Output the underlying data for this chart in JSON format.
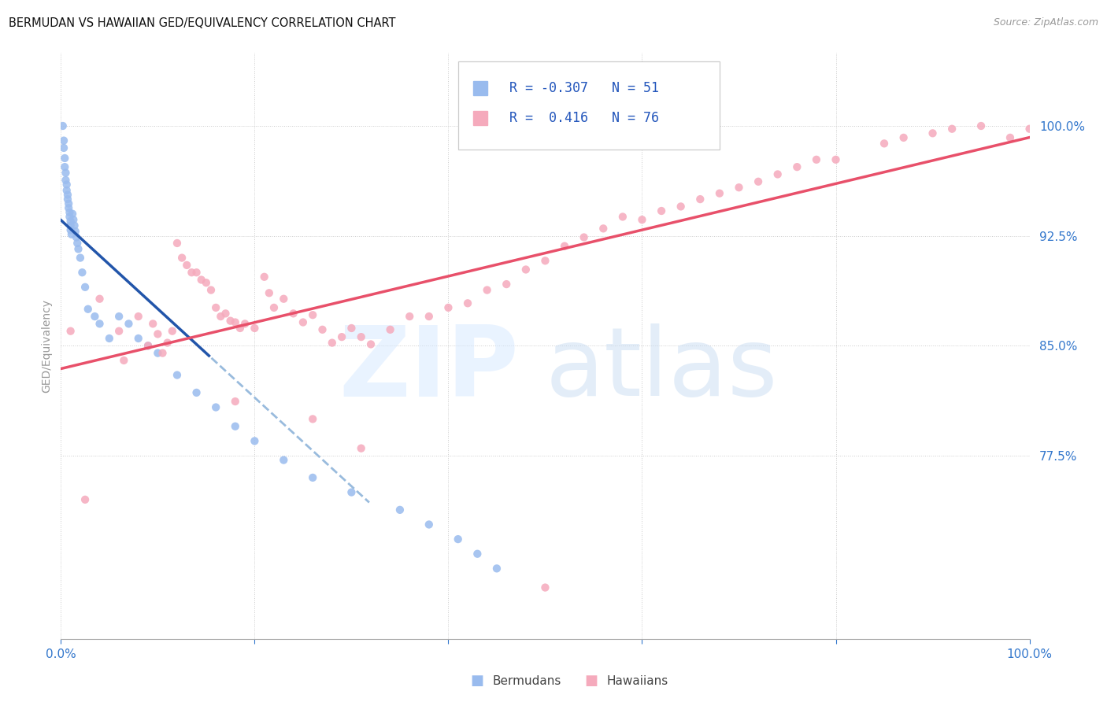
{
  "title_text": "BERMUDAN VS HAWAIIAN GED/EQUIVALENCY CORRELATION CHART",
  "source_text": "Source: ZipAtlas.com",
  "ylabel_text": "GED/Equivalency",
  "blue_color": "#99BBEE",
  "pink_color": "#F5AABC",
  "line_blue_color": "#2255AA",
  "line_blue_dashed_color": "#99BBDD",
  "line_pink_color": "#E8506A",
  "grid_color": "#CCCCCC",
  "tick_color": "#3377CC",
  "x_tick_labels": [
    "0.0%",
    "",
    "",
    "",
    "",
    "100.0%"
  ],
  "y_tick_labels": [
    "77.5%",
    "85.0%",
    "92.5%",
    "100.0%"
  ],
  "y_tick_positions": [
    0.775,
    0.85,
    0.925,
    1.0
  ],
  "x_tick_positions": [
    0.0,
    0.2,
    0.4,
    0.6,
    0.8,
    1.0
  ],
  "legend_r1": "R = -0.307",
  "legend_n1": "N = 51",
  "legend_r2": "R =  0.416",
  "legend_n2": "N = 76",
  "legend_label1": "Bermudans",
  "legend_label2": "Hawaiians",
  "blue_points_x": [
    0.002,
    0.003,
    0.003,
    0.004,
    0.004,
    0.005,
    0.005,
    0.006,
    0.006,
    0.007,
    0.007,
    0.008,
    0.008,
    0.009,
    0.009,
    0.01,
    0.01,
    0.01,
    0.011,
    0.012,
    0.013,
    0.014,
    0.015,
    0.016,
    0.017,
    0.018,
    0.02,
    0.022,
    0.025,
    0.028,
    0.035,
    0.04,
    0.05,
    0.06,
    0.07,
    0.08,
    0.09,
    0.1,
    0.12,
    0.14,
    0.16,
    0.18,
    0.2,
    0.23,
    0.26,
    0.3,
    0.35,
    0.38,
    0.41,
    0.43,
    0.45
  ],
  "blue_points_y": [
    1.0,
    0.99,
    0.985,
    0.978,
    0.972,
    0.968,
    0.963,
    0.96,
    0.956,
    0.953,
    0.95,
    0.947,
    0.944,
    0.941,
    0.938,
    0.935,
    0.932,
    0.929,
    0.926,
    0.94,
    0.936,
    0.932,
    0.928,
    0.924,
    0.92,
    0.916,
    0.91,
    0.9,
    0.89,
    0.875,
    0.87,
    0.865,
    0.855,
    0.87,
    0.865,
    0.855,
    0.85,
    0.845,
    0.83,
    0.818,
    0.808,
    0.795,
    0.785,
    0.772,
    0.76,
    0.75,
    0.738,
    0.728,
    0.718,
    0.708,
    0.698
  ],
  "pink_points_x": [
    0.01,
    0.025,
    0.04,
    0.06,
    0.065,
    0.08,
    0.09,
    0.095,
    0.1,
    0.105,
    0.11,
    0.115,
    0.12,
    0.125,
    0.13,
    0.135,
    0.14,
    0.145,
    0.15,
    0.155,
    0.16,
    0.165,
    0.17,
    0.175,
    0.18,
    0.185,
    0.19,
    0.2,
    0.21,
    0.215,
    0.22,
    0.23,
    0.24,
    0.25,
    0.26,
    0.27,
    0.28,
    0.29,
    0.3,
    0.31,
    0.32,
    0.34,
    0.36,
    0.38,
    0.4,
    0.42,
    0.44,
    0.46,
    0.48,
    0.5,
    0.52,
    0.54,
    0.56,
    0.58,
    0.6,
    0.62,
    0.64,
    0.66,
    0.68,
    0.7,
    0.72,
    0.74,
    0.76,
    0.78,
    0.8,
    0.85,
    0.87,
    0.9,
    0.92,
    0.95,
    0.98,
    1.0,
    0.18,
    0.26,
    0.31,
    0.5
  ],
  "pink_points_y": [
    0.86,
    0.745,
    0.882,
    0.86,
    0.84,
    0.87,
    0.85,
    0.865,
    0.858,
    0.845,
    0.852,
    0.86,
    0.92,
    0.91,
    0.905,
    0.9,
    0.9,
    0.895,
    0.893,
    0.888,
    0.876,
    0.87,
    0.872,
    0.867,
    0.866,
    0.862,
    0.865,
    0.862,
    0.897,
    0.886,
    0.876,
    0.882,
    0.872,
    0.866,
    0.871,
    0.861,
    0.852,
    0.856,
    0.862,
    0.856,
    0.851,
    0.861,
    0.87,
    0.87,
    0.876,
    0.879,
    0.888,
    0.892,
    0.902,
    0.908,
    0.918,
    0.924,
    0.93,
    0.938,
    0.936,
    0.942,
    0.945,
    0.95,
    0.954,
    0.958,
    0.962,
    0.967,
    0.972,
    0.977,
    0.977,
    0.988,
    0.992,
    0.995,
    0.998,
    1.0,
    0.992,
    0.998,
    0.812,
    0.8,
    0.78,
    0.685
  ],
  "x_min": 0.0,
  "x_max": 1.0,
  "y_min": 0.65,
  "y_max": 1.05,
  "blue_line_solid_end": 0.155,
  "blue_line_dashed_end": 0.32
}
